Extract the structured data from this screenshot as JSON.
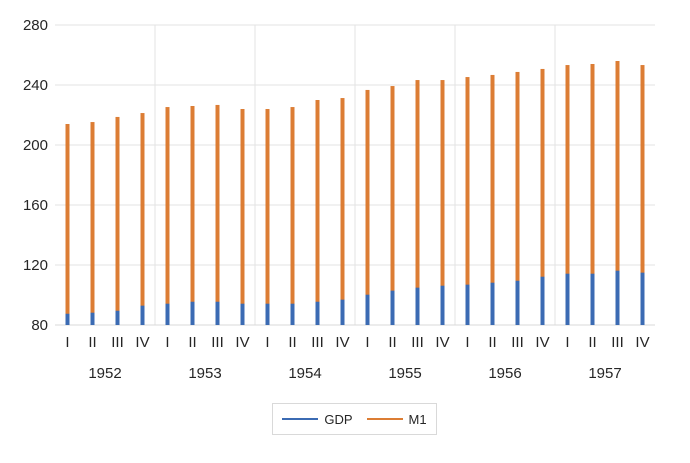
{
  "chart_data": {
    "type": "bar",
    "subtype": "stacked-line-bars",
    "title": "",
    "xlabel": "",
    "ylabel": "",
    "ylim": [
      80,
      280
    ],
    "yticks": [
      80,
      120,
      160,
      200,
      240,
      280
    ],
    "grid": true,
    "legend_position": "bottom",
    "years": [
      "1952",
      "1953",
      "1954",
      "1955",
      "1956",
      "1957"
    ],
    "quarters": [
      "I",
      "II",
      "III",
      "IV"
    ],
    "series": [
      {
        "name": "GDP",
        "color": "#3b6bb3",
        "values": [
          87.5,
          88.2,
          89.5,
          92.9,
          94.2,
          95.5,
          95.5,
          94.2,
          94.2,
          94.2,
          95.5,
          96.9,
          100.2,
          102.9,
          104.9,
          106.2,
          106.9,
          108.2,
          109.5,
          112.2,
          114.2,
          114.2,
          116.2,
          114.9
        ]
      },
      {
        "name": "M1",
        "color": "#dc7d34",
        "values": [
          214,
          215.3,
          218.7,
          221.3,
          225.3,
          226,
          226.7,
          224,
          224,
          225.3,
          230,
          231.3,
          236.7,
          239.3,
          243.3,
          243.3,
          245.3,
          246.7,
          248.7,
          250.7,
          253.3,
          254,
          256,
          253.3
        ]
      }
    ]
  }
}
